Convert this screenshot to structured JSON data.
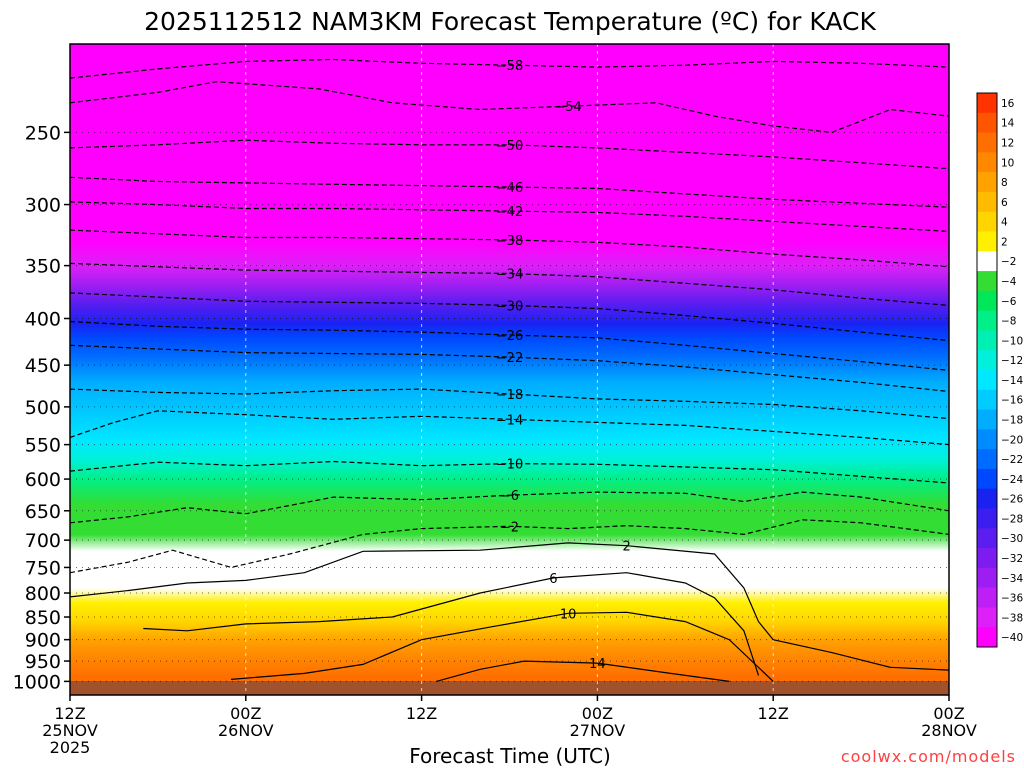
{
  "chart_data": {
    "type": "heatmap",
    "title": "2025112512 NAM3KM Forecast Temperature (ºC) for KACK",
    "xlabel": "Forecast Time (UTC)",
    "ylabel": "",
    "watermark": "coolwx.com/models",
    "x_ticks": [
      {
        "t": 0,
        "lines": [
          "12Z",
          "25NOV",
          "2025"
        ]
      },
      {
        "t": 12,
        "lines": [
          "00Z",
          "26NOV"
        ]
      },
      {
        "t": 24,
        "lines": [
          "12Z"
        ]
      },
      {
        "t": 36,
        "lines": [
          "00Z",
          "27NOV"
        ]
      },
      {
        "t": 48,
        "lines": [
          "12Z"
        ]
      },
      {
        "t": 60,
        "lines": [
          "00Z",
          "28NOV"
        ]
      }
    ],
    "xlim_hours": [
      0,
      60
    ],
    "y_axis": {
      "scale": "log",
      "reversed": true,
      "unit": "hPa",
      "ylim": [
        1035,
        200
      ]
    },
    "y_ticks": [
      250,
      300,
      350,
      400,
      450,
      500,
      550,
      600,
      650,
      700,
      750,
      800,
      850,
      900,
      950,
      1000
    ],
    "grid": true,
    "colorbar": {
      "placement": "right",
      "labels": [
        "16",
        "14",
        "12",
        "10",
        "8",
        "6",
        "4",
        "2",
        "-2",
        "-4",
        "-6",
        "-8",
        "-10",
        "-12",
        "-14",
        "-16",
        "-18",
        "-20",
        "-22",
        "-24",
        "-26",
        "-28",
        "-30",
        "-32",
        "-34",
        "-36",
        "-38",
        "-40"
      ],
      "colors": [
        "#ff3300",
        "#ff5500",
        "#ff6e00",
        "#ff8800",
        "#ffa200",
        "#ffbb00",
        "#ffd500",
        "#fff000",
        "#ffffff",
        "#33dd33",
        "#00e85a",
        "#00ef88",
        "#00f0b4",
        "#00f0dc",
        "#00e8ff",
        "#00ccff",
        "#00adff",
        "#008cff",
        "#006cff",
        "#0048ff",
        "#1a22f2",
        "#3c1ef0",
        "#5c1df0",
        "#7d1cf0",
        "#9d1ef2",
        "#bd1ff4",
        "#dd20f7",
        "#ff00ff"
      ]
    },
    "contours": [
      {
        "value": -58,
        "pts": [
          [
            0,
            218
          ],
          [
            6,
            213
          ],
          [
            12,
            209
          ],
          [
            18,
            208
          ],
          [
            24,
            210
          ],
          [
            30,
            211
          ],
          [
            36,
            212
          ],
          [
            42,
            211
          ],
          [
            48,
            209
          ],
          [
            54,
            210
          ],
          [
            60,
            212
          ]
        ]
      },
      {
        "value": -54,
        "pts": [
          [
            0,
            232
          ],
          [
            6,
            226
          ],
          [
            10,
            220
          ],
          [
            17,
            224
          ],
          [
            22,
            232
          ],
          [
            28,
            236
          ],
          [
            34,
            234
          ],
          [
            40,
            232
          ],
          [
            44,
            240
          ],
          [
            48,
            246
          ],
          [
            52,
            250
          ],
          [
            56,
            236
          ],
          [
            60,
            240
          ]
        ]
      },
      {
        "value": -50,
        "pts": [
          [
            0,
            260
          ],
          [
            6,
            258
          ],
          [
            12,
            255
          ],
          [
            18,
            257
          ],
          [
            24,
            258
          ],
          [
            30,
            258
          ],
          [
            36,
            260
          ],
          [
            42,
            263
          ],
          [
            48,
            266
          ],
          [
            54,
            270
          ],
          [
            60,
            274
          ]
        ]
      },
      {
        "value": -46,
        "pts": [
          [
            0,
            280
          ],
          [
            6,
            283
          ],
          [
            12,
            284
          ],
          [
            18,
            285
          ],
          [
            24,
            286
          ],
          [
            30,
            287
          ],
          [
            36,
            288
          ],
          [
            42,
            292
          ],
          [
            48,
            296
          ],
          [
            54,
            299
          ],
          [
            60,
            302
          ]
        ]
      },
      {
        "value": -42,
        "pts": [
          [
            0,
            298
          ],
          [
            6,
            300
          ],
          [
            12,
            303
          ],
          [
            18,
            303
          ],
          [
            24,
            304
          ],
          [
            30,
            305
          ],
          [
            36,
            306
          ],
          [
            42,
            309
          ],
          [
            48,
            313
          ],
          [
            54,
            317
          ],
          [
            60,
            321
          ]
        ]
      },
      {
        "value": -38,
        "pts": [
          [
            0,
            320
          ],
          [
            6,
            323
          ],
          [
            12,
            326
          ],
          [
            18,
            326
          ],
          [
            24,
            327
          ],
          [
            30,
            328
          ],
          [
            36,
            330
          ],
          [
            42,
            334
          ],
          [
            48,
            340
          ],
          [
            54,
            345
          ],
          [
            60,
            351
          ]
        ]
      },
      {
        "value": -34,
        "pts": [
          [
            0,
            348
          ],
          [
            6,
            351
          ],
          [
            12,
            354
          ],
          [
            18,
            355
          ],
          [
            24,
            356
          ],
          [
            30,
            357
          ],
          [
            36,
            360
          ],
          [
            42,
            366
          ],
          [
            48,
            372
          ],
          [
            54,
            380
          ],
          [
            60,
            387
          ]
        ]
      },
      {
        "value": -30,
        "pts": [
          [
            0,
            375
          ],
          [
            6,
            379
          ],
          [
            12,
            383
          ],
          [
            18,
            384
          ],
          [
            24,
            385
          ],
          [
            30,
            387
          ],
          [
            36,
            390
          ],
          [
            42,
            397
          ],
          [
            48,
            405
          ],
          [
            54,
            414
          ],
          [
            60,
            423
          ]
        ]
      },
      {
        "value": -26,
        "pts": [
          [
            0,
            403
          ],
          [
            6,
            408
          ],
          [
            12,
            411
          ],
          [
            18,
            412
          ],
          [
            24,
            414
          ],
          [
            30,
            417
          ],
          [
            36,
            420
          ],
          [
            42,
            428
          ],
          [
            48,
            437
          ],
          [
            54,
            446
          ],
          [
            60,
            456
          ]
        ]
      },
      {
        "value": -22,
        "pts": [
          [
            0,
            428
          ],
          [
            6,
            432
          ],
          [
            12,
            436
          ],
          [
            18,
            437
          ],
          [
            24,
            438
          ],
          [
            30,
            441
          ],
          [
            36,
            445
          ],
          [
            42,
            452
          ],
          [
            48,
            461
          ],
          [
            54,
            470
          ],
          [
            60,
            481
          ]
        ]
      },
      {
        "value": -18,
        "pts": [
          [
            0,
            478
          ],
          [
            6,
            482
          ],
          [
            12,
            484
          ],
          [
            18,
            480
          ],
          [
            24,
            478
          ],
          [
            30,
            484
          ],
          [
            36,
            490
          ],
          [
            42,
            493
          ],
          [
            48,
            497
          ],
          [
            54,
            505
          ],
          [
            60,
            515
          ]
        ]
      },
      {
        "value": -14,
        "pts": [
          [
            0,
            540
          ],
          [
            3,
            520
          ],
          [
            6,
            505
          ],
          [
            12,
            510
          ],
          [
            18,
            516
          ],
          [
            24,
            512
          ],
          [
            30,
            516
          ],
          [
            36,
            520
          ],
          [
            42,
            524
          ],
          [
            48,
            532
          ],
          [
            54,
            540
          ],
          [
            60,
            550
          ]
        ]
      },
      {
        "value": -10,
        "pts": [
          [
            0,
            588
          ],
          [
            6,
            575
          ],
          [
            12,
            580
          ],
          [
            18,
            574
          ],
          [
            24,
            580
          ],
          [
            30,
            577
          ],
          [
            36,
            578
          ],
          [
            42,
            582
          ],
          [
            48,
            586
          ],
          [
            54,
            596
          ],
          [
            60,
            606
          ]
        ]
      },
      {
        "value": -6,
        "pts": [
          [
            0,
            670
          ],
          [
            4,
            660
          ],
          [
            8,
            645
          ],
          [
            12,
            655
          ],
          [
            18,
            628
          ],
          [
            24,
            632
          ],
          [
            30,
            625
          ],
          [
            36,
            620
          ],
          [
            42,
            622
          ],
          [
            46,
            635
          ],
          [
            50,
            620
          ],
          [
            54,
            628
          ],
          [
            60,
            650
          ]
        ]
      },
      {
        "value": -2,
        "pts": [
          [
            0,
            760
          ],
          [
            4,
            740
          ],
          [
            7,
            718
          ],
          [
            11,
            750
          ],
          [
            15,
            725
          ],
          [
            20,
            690
          ],
          [
            24,
            680
          ],
          [
            30,
            676
          ],
          [
            34,
            680
          ],
          [
            38,
            675
          ],
          [
            42,
            680
          ],
          [
            46,
            690
          ],
          [
            50,
            665
          ],
          [
            54,
            670
          ],
          [
            60,
            690
          ]
        ]
      },
      {
        "value": 2,
        "pts": [
          [
            0,
            808
          ],
          [
            4,
            795
          ],
          [
            8,
            780
          ],
          [
            12,
            775
          ],
          [
            16,
            760
          ],
          [
            20,
            720
          ],
          [
            28,
            718
          ],
          [
            34,
            705
          ],
          [
            38,
            710
          ],
          [
            44,
            725
          ],
          [
            46,
            790
          ],
          [
            47,
            860
          ],
          [
            48,
            900
          ],
          [
            52,
            930
          ],
          [
            56,
            965
          ],
          [
            60,
            972
          ]
        ]
      },
      {
        "value": 6,
        "pts": [
          [
            5,
            875
          ],
          [
            8,
            880
          ],
          [
            12,
            865
          ],
          [
            17,
            860
          ],
          [
            22,
            850
          ],
          [
            28,
            800
          ],
          [
            33,
            770
          ],
          [
            38,
            760
          ],
          [
            42,
            780
          ],
          [
            44,
            810
          ],
          [
            46,
            880
          ],
          [
            47,
            985
          ]
        ]
      },
      {
        "value": 10,
        "pts": [
          [
            11,
            995
          ],
          [
            16,
            980
          ],
          [
            20,
            958
          ],
          [
            24,
            900
          ],
          [
            29,
            870
          ],
          [
            34,
            842
          ],
          [
            38,
            840
          ],
          [
            42,
            860
          ],
          [
            45,
            900
          ],
          [
            48,
            1000
          ]
        ]
      },
      {
        "value": 14,
        "pts": [
          [
            25,
            1000
          ],
          [
            28,
            970
          ],
          [
            31,
            950
          ],
          [
            36,
            955
          ],
          [
            41,
            980
          ],
          [
            45,
            1000
          ]
        ]
      }
    ]
  }
}
